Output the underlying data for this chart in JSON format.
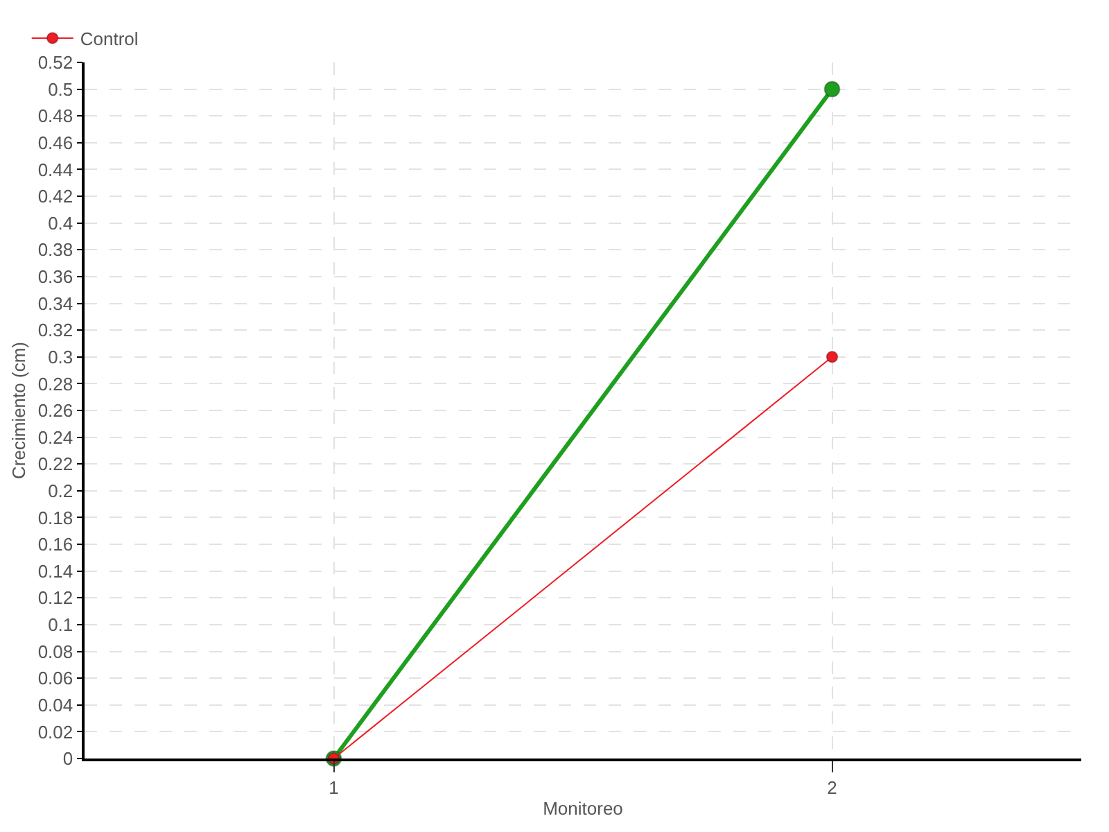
{
  "chart_data": {
    "type": "line",
    "xlabel": "Monitoreo",
    "ylabel": "Crecimiento (cm)",
    "x": [
      1,
      2
    ],
    "xlim": [
      0.5,
      2.5
    ],
    "xticks": [
      1,
      2
    ],
    "ylim": [
      0,
      0.52
    ],
    "yticks": [
      0,
      0.02,
      0.04,
      0.06,
      0.08,
      0.1,
      0.12,
      0.14,
      0.16,
      0.18,
      0.2,
      0.22,
      0.24,
      0.26,
      0.28,
      0.3,
      0.32,
      0.34,
      0.36,
      0.38,
      0.4,
      0.42,
      0.44,
      0.46,
      0.48,
      0.5,
      0.52
    ],
    "grid": true,
    "legend": "top left",
    "marker": "circle",
    "line_style": "solid",
    "series": [
      {
        "color": "#1f9f1f",
        "values": [
          0,
          0.5
        ]
      },
      {
        "name": "Control",
        "color": "#ee1c25",
        "values": [
          0,
          0.3
        ]
      }
    ]
  }
}
